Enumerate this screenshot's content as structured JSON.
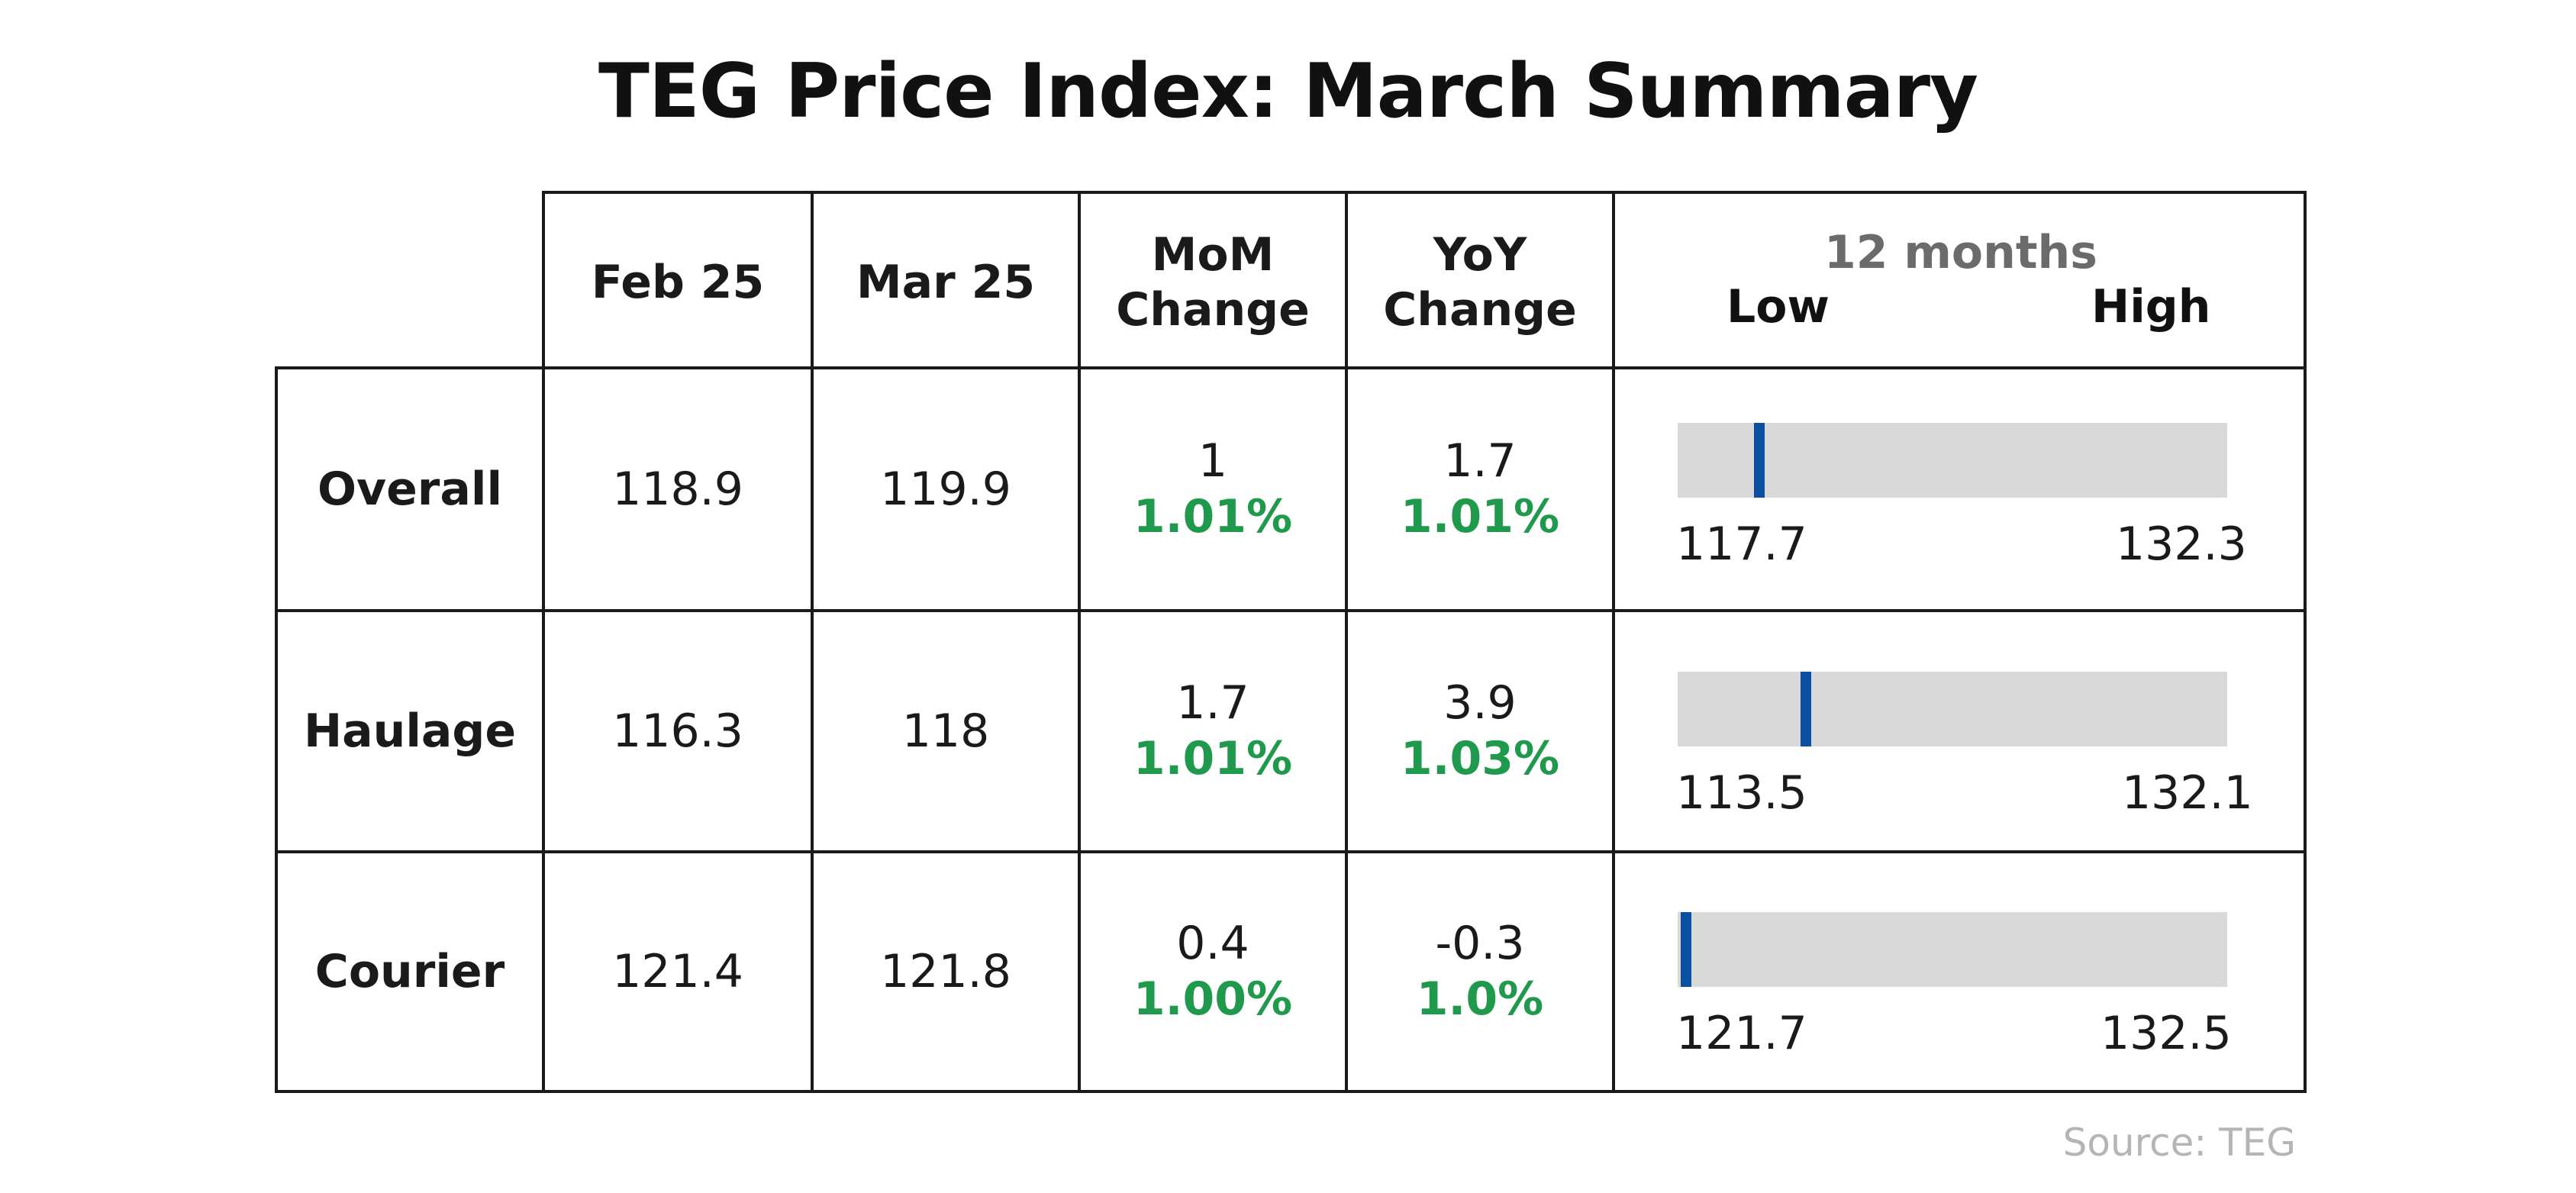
{
  "title": "TEG Price Index: March Summary",
  "columns": {
    "feb": "Feb 25",
    "mar": "Mar 25",
    "mom_line1": "MoM",
    "mom_line2": "Change",
    "yoy_line1": "YoY",
    "yoy_line2": "Change",
    "range_caption": "12 months",
    "range_low": "Low",
    "range_high": "High"
  },
  "rows": [
    {
      "name": "Overall",
      "feb": "118.9",
      "mar": "119.9",
      "mom_abs": "1",
      "mom_pct": "1.01%",
      "yoy_abs": "1.7",
      "yoy_pct": "1.01%",
      "low": "117.7",
      "high": "132.3"
    },
    {
      "name": "Haulage",
      "feb": "116.3",
      "mar": "118",
      "mom_abs": "1.7",
      "mom_pct": "1.01%",
      "yoy_abs": "3.9",
      "yoy_pct": "1.03%",
      "low": "113.5",
      "high": "132.1"
    },
    {
      "name": "Courier",
      "feb": "121.4",
      "mar": "121.8",
      "mom_abs": "0.4",
      "mom_pct": "1.00%",
      "yoy_abs": "-0.3",
      "yoy_pct": "1.0%",
      "low": "121.7",
      "high": "132.5"
    }
  ],
  "source": "Source: TEG",
  "colors": {
    "positive": "#1f9a4c",
    "marker": "#0b4fa0",
    "range_bar": "#d9d9d9",
    "caption": "#6b6b6b",
    "source": "#b5b5b5"
  },
  "chart_data": {
    "type": "table",
    "title": "TEG Price Index: March Summary",
    "columns": [
      "Feb 25",
      "Mar 25",
      "MoM Change",
      "YoY Change",
      "12 months Low",
      "12 months High"
    ],
    "rows": [
      {
        "category": "Overall",
        "feb": 118.9,
        "mar": 119.9,
        "mom_change": 1,
        "mom_pct": "1.01%",
        "yoy_change": 1.7,
        "yoy_pct": "1.01%",
        "low_12m": 117.7,
        "high_12m": 132.3,
        "current": 119.9
      },
      {
        "category": "Haulage",
        "feb": 116.3,
        "mar": 118,
        "mom_change": 1.7,
        "mom_pct": "1.01%",
        "yoy_change": 3.9,
        "yoy_pct": "1.03%",
        "low_12m": 113.5,
        "high_12m": 132.1,
        "current": 118
      },
      {
        "category": "Courier",
        "feb": 121.4,
        "mar": 121.8,
        "mom_change": 0.4,
        "mom_pct": "1.00%",
        "yoy_change": -0.3,
        "yoy_pct": "1.0%",
        "low_12m": 121.7,
        "high_12m": 132.5,
        "current": 121.8
      }
    ]
  }
}
